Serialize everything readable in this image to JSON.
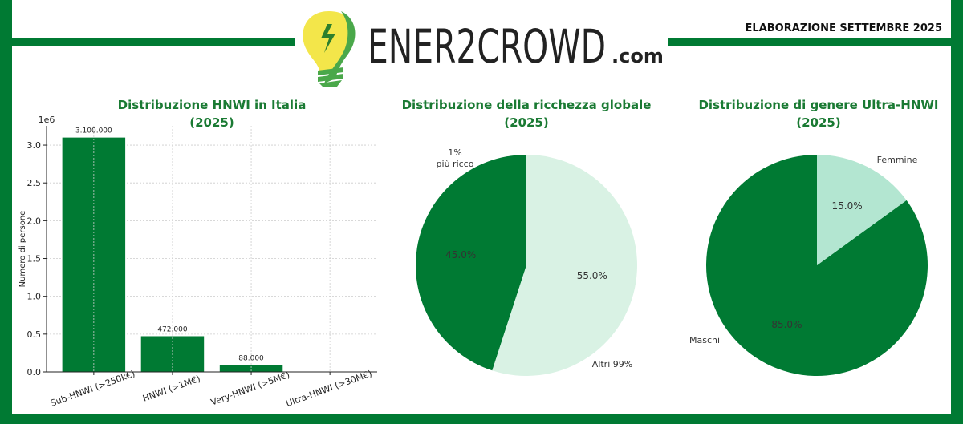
{
  "header": {
    "logo": "ENER2CROWD",
    "logo_suffix": ".com",
    "note": "ELABORAZIONE SETTEMBRE 2025"
  },
  "chart_data": [
    {
      "type": "bar",
      "title": "Distribuzione HNWI in Italia",
      "subtitle": "(2025)",
      "ylabel": "Numero di persone",
      "y_offset_label": "1e6",
      "categories": [
        "Sub-HNWI (>250k€)",
        "HNWI (>1M€)",
        "Very-HNWI (>5M€)",
        "Ultra-HNWI (>30M€)"
      ],
      "values": [
        3100000,
        472000,
        88000,
        2000
      ],
      "value_labels": [
        "3.100.000",
        "472.000",
        "88.000",
        null
      ],
      "color": "#007a33",
      "grid": true,
      "ylim": [
        0,
        3255000
      ],
      "yticks": [
        {
          "value": 0,
          "label": "0.0"
        },
        {
          "value": 500000,
          "label": "0.5"
        },
        {
          "value": 1000000,
          "label": "1.0"
        },
        {
          "value": 1500000,
          "label": "1.5"
        },
        {
          "value": 2000000,
          "label": "2.0"
        },
        {
          "value": 2500000,
          "label": "2.5"
        },
        {
          "value": 3000000,
          "label": "3.0"
        }
      ]
    },
    {
      "type": "pie",
      "title": "Distribuzione della ricchezza globale",
      "subtitle": "(2025)",
      "categories": [
        "1%\npiù ricco",
        "Altri 99%"
      ],
      "values": [
        45,
        55
      ],
      "value_labels": [
        "45.0%",
        "55.0%"
      ],
      "colors": [
        "#007a33",
        "#d9f2e4"
      ]
    },
    {
      "type": "pie",
      "title": "Distribuzione di genere Ultra-HNWI",
      "subtitle": "(2025)",
      "categories": [
        "Maschi",
        "Femmine"
      ],
      "values": [
        85,
        15
      ],
      "value_labels": [
        "85.0%",
        "15.0%"
      ],
      "colors": [
        "#007a33",
        "#b3e6d1"
      ]
    }
  ]
}
